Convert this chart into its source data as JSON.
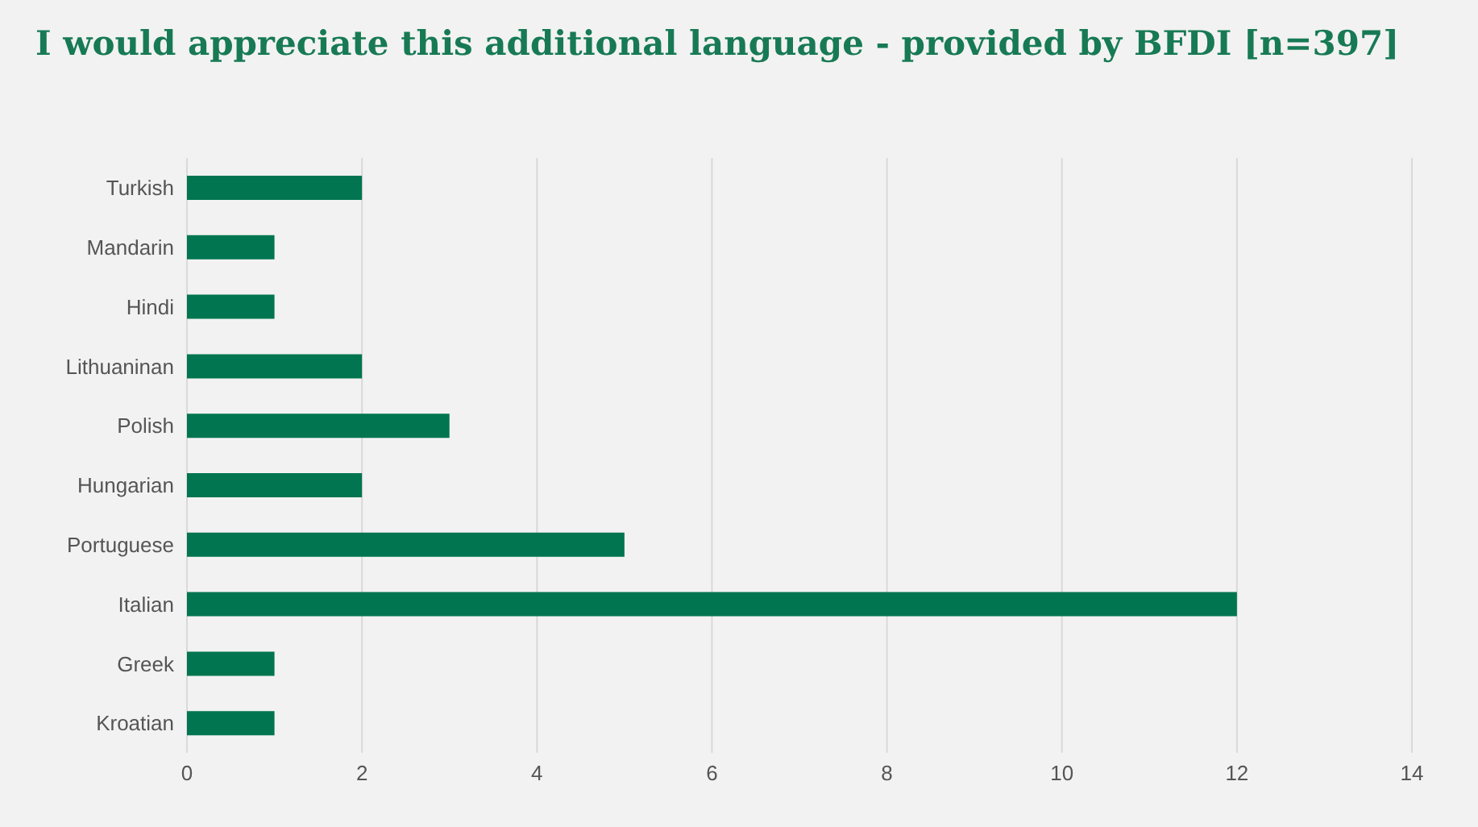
{
  "chart_data": {
    "type": "bar",
    "orientation": "horizontal",
    "title": "I would appreciate this additional language - provided by BFDI [n=397]",
    "categories": [
      "Turkish",
      "Mandarin",
      "Hindi",
      "Lithuaninan",
      "Polish",
      "Hungarian",
      "Portuguese",
      "Italian",
      "Greek",
      "Kroatian"
    ],
    "values": [
      2,
      1,
      1,
      2,
      3,
      2,
      5,
      12,
      1,
      1
    ],
    "color": "#00754f",
    "xlim": [
      0,
      14
    ],
    "xticks": [
      0,
      2,
      4,
      6,
      8,
      10,
      12,
      14
    ],
    "grid": "x",
    "legend": false
  }
}
